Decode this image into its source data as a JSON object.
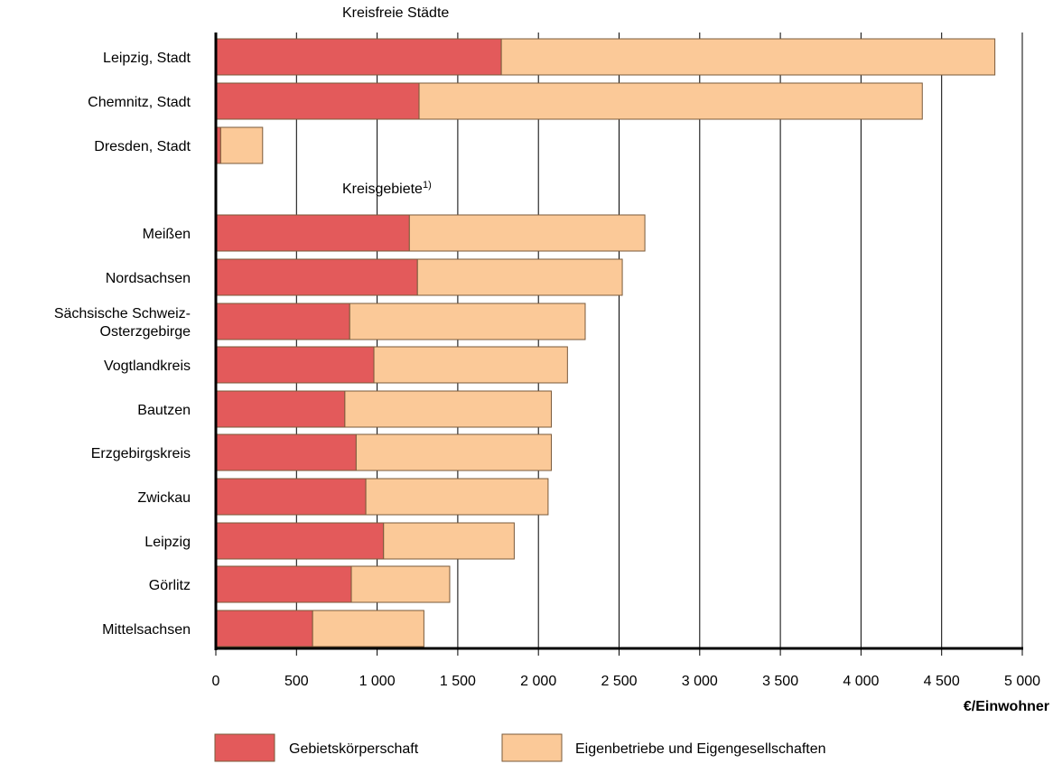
{
  "chart_data": {
    "type": "bar",
    "orientation": "horizontal",
    "stacked": true,
    "xlabel": "€/Einwohner",
    "xlim": [
      0,
      5000
    ],
    "xticks": [
      {
        "value": 0,
        "label": "0"
      },
      {
        "value": 500,
        "label": "500"
      },
      {
        "value": 1000,
        "label": "1 000"
      },
      {
        "value": 1500,
        "label": "1 500"
      },
      {
        "value": 2000,
        "label": "2 000"
      },
      {
        "value": 2500,
        "label": "2 500"
      },
      {
        "value": 3000,
        "label": "3 000"
      },
      {
        "value": 3500,
        "label": "3 500"
      },
      {
        "value": 4000,
        "label": "4 000"
      },
      {
        "value": 4500,
        "label": "4 500"
      },
      {
        "value": 5000,
        "label": "5 000"
      }
    ],
    "grid": "vertical",
    "legend_position": "bottom",
    "groups": [
      {
        "title": "Kreisfreie Städte",
        "title_superscript": "",
        "categories": [
          {
            "label": [
              "Leipzig, Stadt"
            ],
            "values": [
              1770,
              3060
            ]
          },
          {
            "label": [
              "Chemnitz, Stadt"
            ],
            "values": [
              1260,
              3120
            ]
          },
          {
            "label": [
              "Dresden, Stadt"
            ],
            "values": [
              30,
              260
            ]
          }
        ]
      },
      {
        "title": "Kreisgebiete",
        "title_superscript": "1)",
        "categories": [
          {
            "label": [
              "Meißen"
            ],
            "values": [
              1200,
              1460
            ]
          },
          {
            "label": [
              "Nordsachsen"
            ],
            "values": [
              1250,
              1270
            ]
          },
          {
            "label": [
              "Sächsische Schweiz-",
              "Osterzgebirge"
            ],
            "values": [
              830,
              1460
            ]
          },
          {
            "label": [
              "Vogtlandkreis"
            ],
            "values": [
              980,
              1200
            ]
          },
          {
            "label": [
              "Bautzen"
            ],
            "values": [
              800,
              1280
            ]
          },
          {
            "label": [
              "Erzgebirgskreis"
            ],
            "values": [
              870,
              1210
            ]
          },
          {
            "label": [
              "Zwickau"
            ],
            "values": [
              930,
              1130
            ]
          },
          {
            "label": [
              "Leipzig"
            ],
            "values": [
              1040,
              810
            ]
          },
          {
            "label": [
              "Görlitz"
            ],
            "values": [
              840,
              610
            ]
          },
          {
            "label": [
              "Mittelsachsen"
            ],
            "values": [
              600,
              690
            ]
          }
        ]
      }
    ],
    "series": [
      {
        "name": "Gebietskörperschaft",
        "color": "#e35a5b"
      },
      {
        "name": "Eigenbetriebe und Eigengesellschaften",
        "color": "#fbc998"
      }
    ]
  }
}
